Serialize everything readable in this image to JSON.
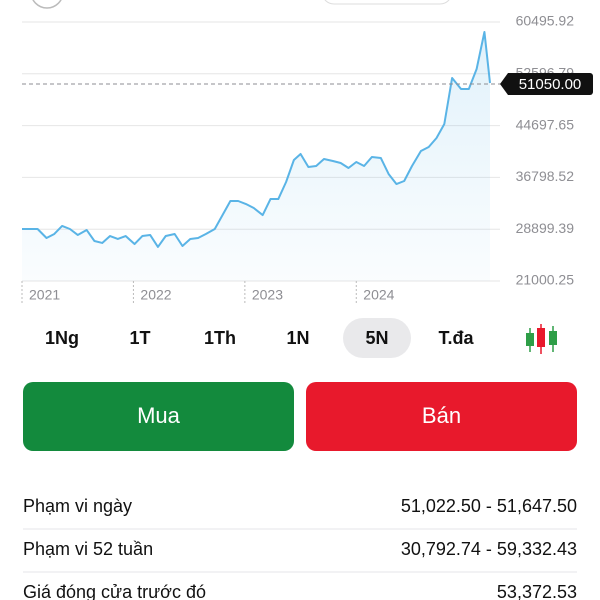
{
  "chart_data": {
    "type": "line",
    "x": [
      2021.0,
      2021.14,
      2021.22,
      2021.29,
      2021.36,
      2021.43,
      2021.5,
      2021.58,
      2021.65,
      2021.72,
      2021.79,
      2021.86,
      2021.93,
      2022.01,
      2022.08,
      2022.15,
      2022.22,
      2022.29,
      2022.37,
      2022.44,
      2022.51,
      2022.58,
      2022.65,
      2022.73,
      2022.8,
      2022.87,
      2022.94,
      2023.01,
      2023.08,
      2023.16,
      2023.23,
      2023.3,
      2023.37,
      2023.44,
      2023.5,
      2023.57,
      2023.64,
      2023.71,
      2023.79,
      2023.86,
      2023.93,
      2024.0,
      2024.07,
      2024.14,
      2024.22,
      2024.29,
      2024.36,
      2024.43,
      2024.5,
      2024.58,
      2024.65,
      2024.72,
      2024.79,
      2024.86,
      2024.94,
      2025.01,
      2025.08,
      2025.15,
      2025.2
    ],
    "series": [
      {
        "color": "#5ab4e6",
        "values": [
          28930,
          28930,
          27560,
          28170,
          29390,
          28930,
          28020,
          28780,
          27100,
          26800,
          27860,
          27410,
          27860,
          26640,
          27860,
          28020,
          26190,
          27860,
          28170,
          26340,
          27410,
          27560,
          28170,
          28930,
          31060,
          33200,
          33200,
          32740,
          32130,
          31060,
          33500,
          33500,
          36100,
          39450,
          40370,
          38380,
          38540,
          39600,
          39300,
          38990,
          38230,
          39150,
          38540,
          39910,
          39760,
          37320,
          35790,
          36250,
          38540,
          40820,
          41430,
          42810,
          44940,
          51960,
          50280,
          50280,
          53330,
          58970,
          51190
        ]
      }
    ],
    "xlim": [
      2021,
      2025.2
    ],
    "xticks": [
      2021,
      2022,
      2023,
      2024
    ],
    "ylim": [
      21000.25,
      60495.92
    ],
    "yticks": [
      21000.25,
      28899.39,
      36798.52,
      44697.65,
      52596.79,
      60495.92
    ],
    "grid": true,
    "price_line": {
      "value": 51050,
      "label": "51050.00"
    }
  },
  "ranges": [
    "1Ng",
    "1T",
    "1Th",
    "1N",
    "5N",
    "T.đa"
  ],
  "selected_range": 4,
  "buttons": {
    "buy": "Mua",
    "sell": "Bán"
  },
  "stats": [
    [
      "Phạm vi ngày",
      "51,022.50 - 51,647.50"
    ],
    [
      "Phạm vi 52 tuần",
      "30,792.74 - 59,332.43"
    ],
    [
      "Giá đóng cửa trước đó",
      "53,372.53"
    ]
  ]
}
